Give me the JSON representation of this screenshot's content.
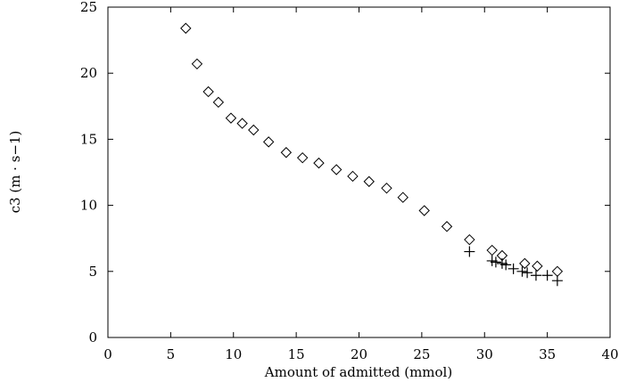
{
  "chart_data": {
    "type": "scatter",
    "xlabel": "Amount of admitted  (mmol)",
    "ylabel": "c3 (m · s−1)",
    "xlim": [
      0,
      40
    ],
    "ylim": [
      0,
      25
    ],
    "x_ticks": [
      "0",
      "5",
      "10",
      "15",
      "20",
      "25",
      "30",
      "35",
      "40"
    ],
    "y_ticks": [
      "0",
      "5",
      "10",
      "15",
      "20",
      "25"
    ],
    "grid": false,
    "series": [
      {
        "marker": "diamond",
        "points": [
          [
            6.2,
            23.4
          ],
          [
            7.1,
            20.7
          ],
          [
            8.0,
            18.6
          ],
          [
            8.8,
            17.8
          ],
          [
            9.8,
            16.6
          ],
          [
            10.7,
            16.2
          ],
          [
            11.6,
            15.7
          ],
          [
            12.8,
            14.8
          ],
          [
            14.2,
            14.0
          ],
          [
            15.5,
            13.6
          ],
          [
            16.8,
            13.2
          ],
          [
            18.2,
            12.7
          ],
          [
            19.5,
            12.2
          ],
          [
            20.8,
            11.8
          ],
          [
            22.2,
            11.3
          ],
          [
            23.5,
            10.6
          ],
          [
            25.2,
            9.6
          ],
          [
            27.0,
            8.4
          ],
          [
            28.8,
            7.4
          ],
          [
            30.6,
            6.6
          ],
          [
            31.4,
            6.2
          ],
          [
            33.2,
            5.6
          ],
          [
            34.2,
            5.4
          ],
          [
            35.8,
            5.0
          ]
        ]
      },
      {
        "marker": "plus",
        "points": [
          [
            28.8,
            6.5
          ],
          [
            30.6,
            5.8
          ],
          [
            30.9,
            5.7
          ],
          [
            31.4,
            5.6
          ],
          [
            31.7,
            5.5
          ],
          [
            32.3,
            5.2
          ],
          [
            33.0,
            5.0
          ],
          [
            33.4,
            4.9
          ],
          [
            34.1,
            4.7
          ],
          [
            35.0,
            4.7
          ],
          [
            35.8,
            4.3
          ]
        ]
      }
    ]
  }
}
